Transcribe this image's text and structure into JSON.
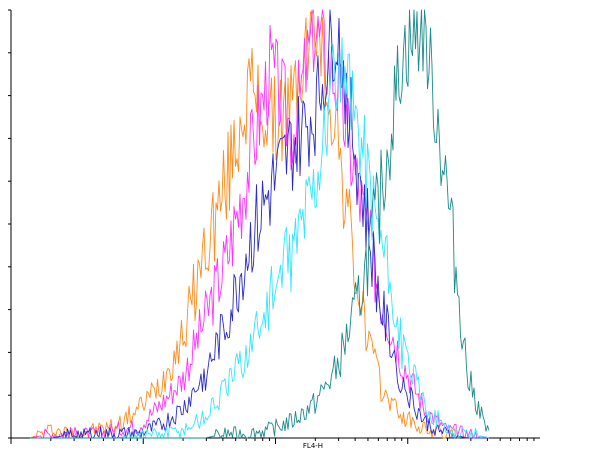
{
  "chart_data": {
    "type": "line",
    "title": "",
    "xlabel": "FL4-H",
    "ylabel": "",
    "x_scale": "log",
    "xlim": [
      1,
      10000
    ],
    "ylim": [
      0,
      100
    ],
    "grid": false,
    "legend": "none",
    "series": [
      {
        "color": "#ff8c1a",
        "x": [
          1.39,
          2.03,
          2.98,
          4.36,
          6.37,
          9.34,
          13.7,
          20.0,
          29.3,
          42.9,
          62.8,
          92.0,
          134.7,
          197.3,
          288.9,
          423.2,
          619.8,
          907.7,
          1329,
          1947,
          2851,
          4176
        ],
        "values": [
          0,
          2,
          1,
          2,
          3,
          7,
          13,
          24,
          44,
          60,
          82,
          73,
          78,
          98,
          72,
          33,
          12,
          5,
          2,
          1,
          0,
          0
        ]
      },
      {
        "color": "#ff33ff",
        "x": [
          1.39,
          2.03,
          2.98,
          4.36,
          6.37,
          9.34,
          13.7,
          20.0,
          29.3,
          42.9,
          62.8,
          92.0,
          134.7,
          197.3,
          288.9,
          423.2,
          619.8,
          907.7,
          1329,
          1947,
          2851,
          4176
        ],
        "values": [
          0,
          1,
          1,
          1,
          2,
          3,
          8,
          14,
          28,
          42,
          64,
          87,
          71,
          96,
          83,
          58,
          33,
          18,
          7,
          2,
          1,
          0
        ]
      },
      {
        "color": "#2a2acc",
        "x": [
          1.39,
          2.03,
          2.98,
          4.36,
          6.37,
          9.34,
          13.7,
          20.0,
          29.3,
          42.9,
          62.8,
          92.0,
          134.7,
          197.3,
          288.9,
          423.2,
          619.8,
          907.7,
          1329,
          1947,
          2851,
          4176
        ],
        "values": [
          0,
          0,
          1,
          1,
          1,
          1,
          3,
          7,
          15,
          27,
          45,
          58,
          68,
          76,
          96,
          63,
          31,
          13,
          4,
          1,
          0,
          0
        ]
      },
      {
        "color": "#33e6ff",
        "x": [
          1.39,
          2.03,
          2.98,
          4.36,
          6.37,
          9.34,
          13.7,
          20.0,
          29.3,
          42.9,
          62.8,
          92.0,
          134.7,
          197.3,
          288.9,
          423.2,
          619.8,
          907.7,
          1329,
          1947,
          2851,
          4176
        ],
        "values": [
          0,
          0,
          0,
          0,
          0,
          1,
          1,
          2,
          5,
          12,
          21,
          33,
          44,
          60,
          86,
          74,
          47,
          21,
          8,
          2,
          1,
          0
        ]
      },
      {
        "color": "#1a8a8a",
        "x": [
          1.39,
          2.03,
          2.98,
          4.36,
          6.37,
          9.34,
          13.7,
          20.0,
          29.3,
          42.9,
          62.8,
          92.0,
          134.7,
          197.3,
          288.9,
          423.2,
          619.8,
          907.7,
          1329,
          1947,
          2851,
          4176
        ],
        "values": [
          0,
          0,
          0,
          0,
          0,
          0,
          0,
          0,
          0,
          1,
          1,
          2,
          4,
          8,
          16,
          32,
          56,
          90,
          96,
          60,
          14,
          0
        ]
      }
    ]
  }
}
